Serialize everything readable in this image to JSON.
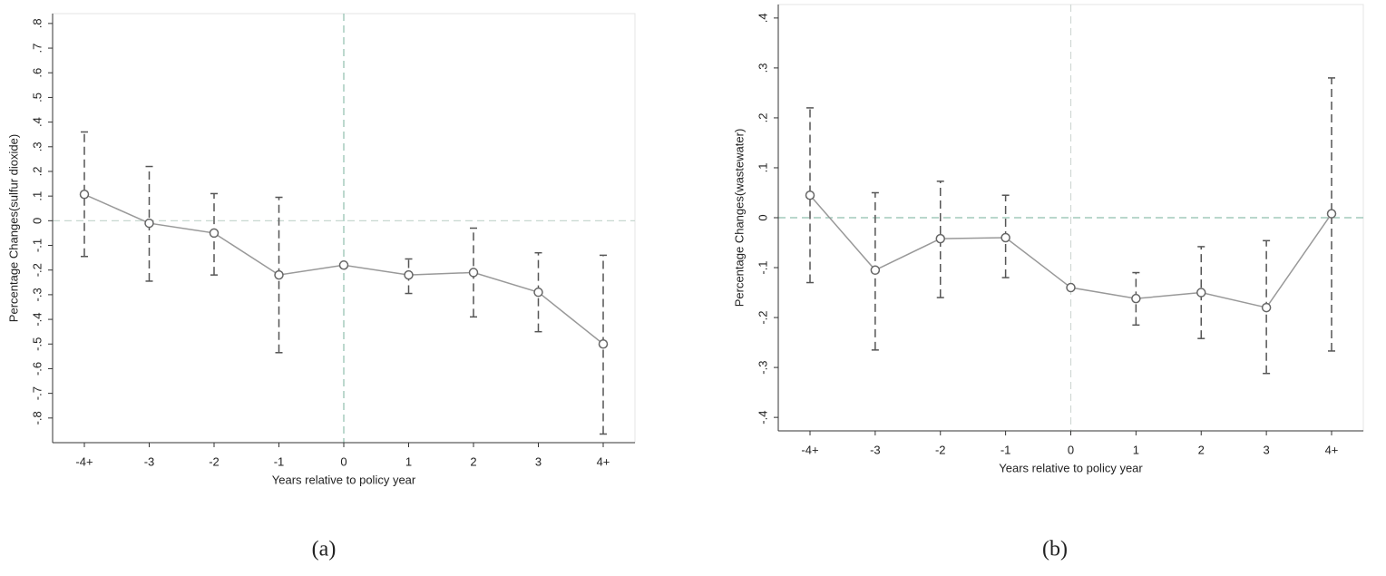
{
  "chart_data": [
    {
      "type": "errorbar-line",
      "caption": "(a)",
      "xlabel": "Years relative to policy year",
      "ylabel": "Percentage Changes(sulfur dioxide)",
      "categories": [
        "-4+",
        "-3",
        "-2",
        "-1",
        "0",
        "1",
        "2",
        "3",
        "4+"
      ],
      "series": [
        {
          "color": "#999999",
          "values": [
            0.107,
            -0.01,
            -0.05,
            -0.22,
            -0.18,
            -0.22,
            -0.21,
            -0.29,
            -0.5
          ],
          "lower": [
            -0.145,
            -0.245,
            -0.22,
            -0.535,
            null,
            -0.295,
            -0.39,
            -0.45,
            -0.865
          ],
          "upper": [
            0.36,
            0.22,
            0.11,
            0.095,
            null,
            -0.155,
            -0.03,
            -0.13,
            -0.14
          ]
        }
      ],
      "ylim": [
        -0.9,
        0.84
      ],
      "yticks": [
        {
          "value": -0.8,
          "label": "-.8"
        },
        {
          "value": -0.7,
          "label": "-.7"
        },
        {
          "value": -0.6,
          "label": "-.6"
        },
        {
          "value": -0.5,
          "label": "-.5"
        },
        {
          "value": -0.4,
          "label": "-.4"
        },
        {
          "value": -0.3,
          "label": "-.3"
        },
        {
          "value": -0.2,
          "label": "-.2"
        },
        {
          "value": -0.1,
          "label": "-.1"
        },
        0,
        {
          "value": 0.1,
          "label": ".1"
        },
        {
          "value": 0.2,
          "label": ".2"
        },
        {
          "value": 0.3,
          "label": ".3"
        },
        {
          "value": 0.4,
          "label": ".4"
        },
        {
          "value": 0.5,
          "label": ".5"
        },
        {
          "value": 0.6,
          "label": ".6"
        },
        {
          "value": 0.7,
          "label": ".7"
        },
        {
          "value": 0.8,
          "label": ".8"
        }
      ],
      "ref_y": 0,
      "ref_y_color": "#c8d8d0",
      "ref_x": "0",
      "ref_x_color": "#8fbfae"
    },
    {
      "type": "errorbar-line",
      "caption": "(b)",
      "xlabel": "Years relative to policy year",
      "ylabel": "Percentage Changes(wastewater)",
      "categories": [
        "-4+",
        "-3",
        "-2",
        "-1",
        "0",
        "1",
        "2",
        "3",
        "4+"
      ],
      "series": [
        {
          "color": "#999999",
          "values": [
            0.045,
            -0.105,
            -0.042,
            -0.04,
            -0.14,
            -0.162,
            -0.15,
            -0.18,
            0.008
          ],
          "lower": [
            -0.13,
            -0.265,
            -0.16,
            -0.12,
            null,
            -0.215,
            -0.242,
            -0.312,
            -0.267
          ],
          "upper": [
            0.22,
            0.05,
            0.073,
            0.045,
            null,
            -0.11,
            -0.058,
            -0.046,
            0.28
          ]
        }
      ],
      "ylim": [
        -0.427,
        0.427
      ],
      "yticks": [
        {
          "value": -0.4,
          "label": "-.4"
        },
        {
          "value": -0.3,
          "label": "-.3"
        },
        {
          "value": -0.2,
          "label": "-.2"
        },
        {
          "value": -0.1,
          "label": "-.1"
        },
        0,
        {
          "value": 0.1,
          "label": ".1"
        },
        {
          "value": 0.2,
          "label": ".2"
        },
        {
          "value": 0.3,
          "label": ".3"
        },
        {
          "value": 0.4,
          "label": ".4"
        }
      ],
      "ref_y": 0,
      "ref_y_color": "#8fbfae",
      "ref_x": "0",
      "ref_x_color": "#d0d8d4"
    }
  ]
}
